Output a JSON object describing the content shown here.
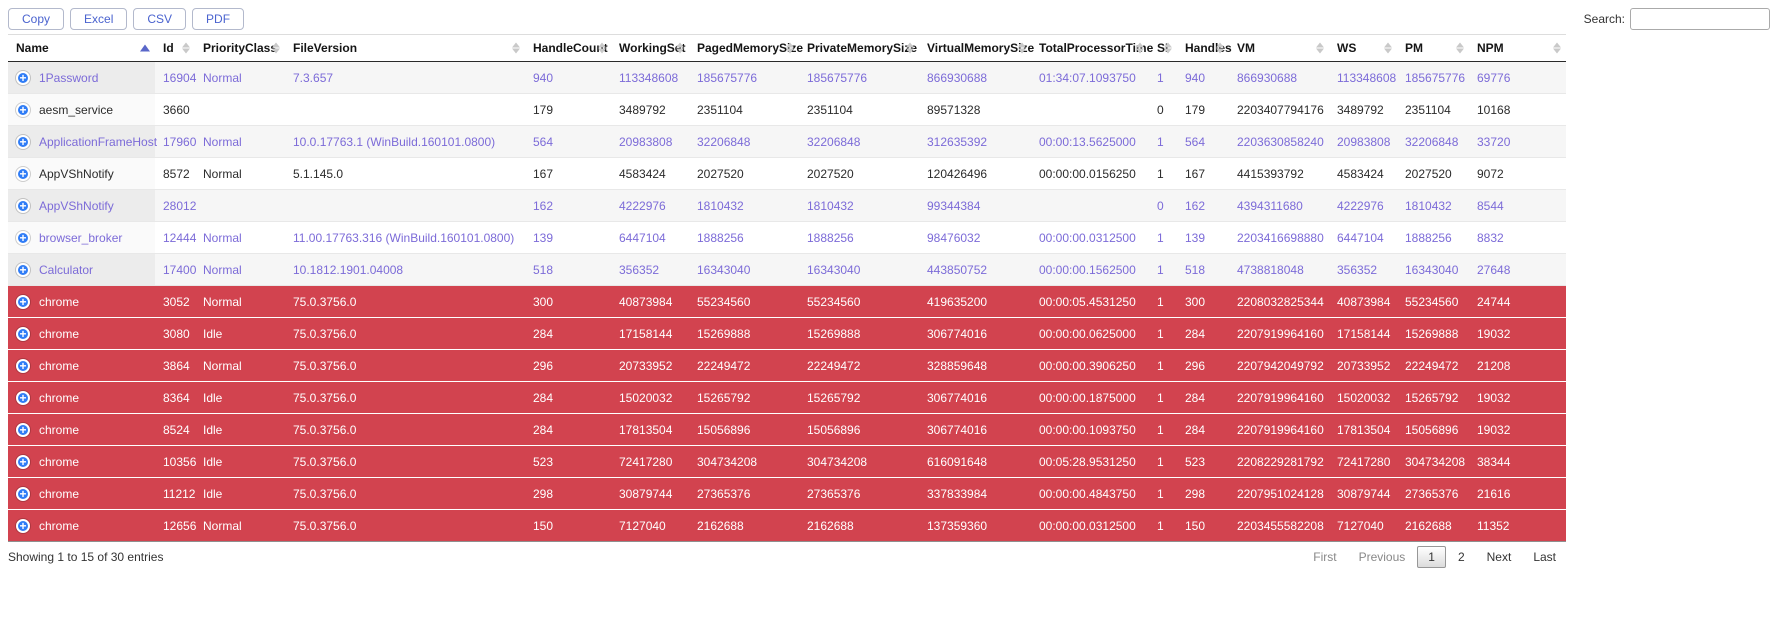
{
  "toolbar": {
    "export_buttons": [
      "Copy",
      "Excel",
      "CSV",
      "PDF"
    ],
    "search_label": "Search:",
    "search_value": ""
  },
  "table": {
    "columns": [
      "Name",
      "Id",
      "PriorityClass",
      "FileVersion",
      "HandleCount",
      "WorkingSet",
      "PagedMemorySize",
      "PrivateMemorySize",
      "VirtualMemorySize",
      "TotalProcessorTime",
      "SI",
      "Handles",
      "VM",
      "WS",
      "PM",
      "NPM"
    ],
    "sort": {
      "column": "Name",
      "direction": "asc"
    },
    "rows": [
      {
        "style": "purple",
        "cells": [
          "1Password",
          "16904",
          "Normal",
          "7.3.657",
          "940",
          "113348608",
          "185675776",
          "185675776",
          "866930688",
          "01:34:07.1093750",
          "1",
          "940",
          "866930688",
          "113348608",
          "185675776",
          "69776"
        ]
      },
      {
        "style": "black",
        "cells": [
          "aesm_service",
          "3660",
          "",
          "",
          "179",
          "3489792",
          "2351104",
          "2351104",
          "89571328",
          "",
          "0",
          "179",
          "2203407794176",
          "3489792",
          "2351104",
          "10168"
        ]
      },
      {
        "style": "purple",
        "cells": [
          "ApplicationFrameHost",
          "17960",
          "Normal",
          "10.0.17763.1 (WinBuild.160101.0800)",
          "564",
          "20983808",
          "32206848",
          "32206848",
          "312635392",
          "00:00:13.5625000",
          "1",
          "564",
          "2203630858240",
          "20983808",
          "32206848",
          "33720"
        ]
      },
      {
        "style": "black",
        "cells": [
          "AppVShNotify",
          "8572",
          "Normal",
          "5.1.145.0",
          "167",
          "4583424",
          "2027520",
          "2027520",
          "120426496",
          "00:00:00.0156250",
          "1",
          "167",
          "4415393792",
          "4583424",
          "2027520",
          "9072"
        ]
      },
      {
        "style": "purple",
        "cells": [
          "AppVShNotify",
          "28012",
          "",
          "",
          "162",
          "4222976",
          "1810432",
          "1810432",
          "99344384",
          "",
          "0",
          "162",
          "4394311680",
          "4222976",
          "1810432",
          "8544"
        ]
      },
      {
        "style": "purple",
        "cells": [
          "browser_broker",
          "12444",
          "Normal",
          "11.00.17763.316 (WinBuild.160101.0800)",
          "139",
          "6447104",
          "1888256",
          "1888256",
          "98476032",
          "00:00:00.0312500",
          "1",
          "139",
          "2203416698880",
          "6447104",
          "1888256",
          "8832"
        ]
      },
      {
        "style": "purple",
        "cells": [
          "Calculator",
          "17400",
          "Normal",
          "10.1812.1901.04008",
          "518",
          "356352",
          "16343040",
          "16343040",
          "443850752",
          "00:00:00.1562500",
          "1",
          "518",
          "4738818048",
          "356352",
          "16343040",
          "27648"
        ]
      },
      {
        "style": "danger",
        "cells": [
          "chrome",
          "3052",
          "Normal",
          "75.0.3756.0",
          "300",
          "40873984",
          "55234560",
          "55234560",
          "419635200",
          "00:00:05.4531250",
          "1",
          "300",
          "2208032825344",
          "40873984",
          "55234560",
          "24744"
        ]
      },
      {
        "style": "danger",
        "cells": [
          "chrome",
          "3080",
          "Idle",
          "75.0.3756.0",
          "284",
          "17158144",
          "15269888",
          "15269888",
          "306774016",
          "00:00:00.0625000",
          "1",
          "284",
          "2207919964160",
          "17158144",
          "15269888",
          "19032"
        ]
      },
      {
        "style": "danger",
        "cells": [
          "chrome",
          "3864",
          "Normal",
          "75.0.3756.0",
          "296",
          "20733952",
          "22249472",
          "22249472",
          "328859648",
          "00:00:00.3906250",
          "1",
          "296",
          "2207942049792",
          "20733952",
          "22249472",
          "21208"
        ]
      },
      {
        "style": "danger",
        "cells": [
          "chrome",
          "8364",
          "Idle",
          "75.0.3756.0",
          "284",
          "15020032",
          "15265792",
          "15265792",
          "306774016",
          "00:00:00.1875000",
          "1",
          "284",
          "2207919964160",
          "15020032",
          "15265792",
          "19032"
        ]
      },
      {
        "style": "danger",
        "cells": [
          "chrome",
          "8524",
          "Idle",
          "75.0.3756.0",
          "284",
          "17813504",
          "15056896",
          "15056896",
          "306774016",
          "00:00:00.1093750",
          "1",
          "284",
          "2207919964160",
          "17813504",
          "15056896",
          "19032"
        ]
      },
      {
        "style": "danger",
        "cells": [
          "chrome",
          "10356",
          "Idle",
          "75.0.3756.0",
          "523",
          "72417280",
          "304734208",
          "304734208",
          "616091648",
          "00:05:28.9531250",
          "1",
          "523",
          "2208229281792",
          "72417280",
          "304734208",
          "38344"
        ]
      },
      {
        "style": "danger",
        "cells": [
          "chrome",
          "11212",
          "Idle",
          "75.0.3756.0",
          "298",
          "30879744",
          "27365376",
          "27365376",
          "337833984",
          "00:00:00.4843750",
          "1",
          "298",
          "2207951024128",
          "30879744",
          "27365376",
          "21616"
        ]
      },
      {
        "style": "danger",
        "cells": [
          "chrome",
          "12656",
          "Normal",
          "75.0.3756.0",
          "150",
          "7127040",
          "2162688",
          "2162688",
          "137359360",
          "00:00:00.0312500",
          "1",
          "150",
          "2203455582208",
          "7127040",
          "2162688",
          "11352"
        ]
      }
    ],
    "expand_icon_glyph": "+"
  },
  "footer": {
    "info": "Showing 1 to 15 of 30 entries",
    "pagination": {
      "buttons": [
        {
          "label": "First",
          "state": "disabled"
        },
        {
          "label": "Previous",
          "state": "disabled"
        },
        {
          "label": "1",
          "state": "current"
        },
        {
          "label": "2",
          "state": "normal"
        },
        {
          "label": "Next",
          "state": "normal"
        },
        {
          "label": "Last",
          "state": "normal"
        }
      ]
    }
  },
  "colors": {
    "danger_row_bg": "#d2434f",
    "purple_row_text": "#7c6bd8",
    "expand_icon_bg": "#2f7cf6",
    "button_text": "#4a63cf",
    "sorted_arrow": "#5a67c9"
  }
}
